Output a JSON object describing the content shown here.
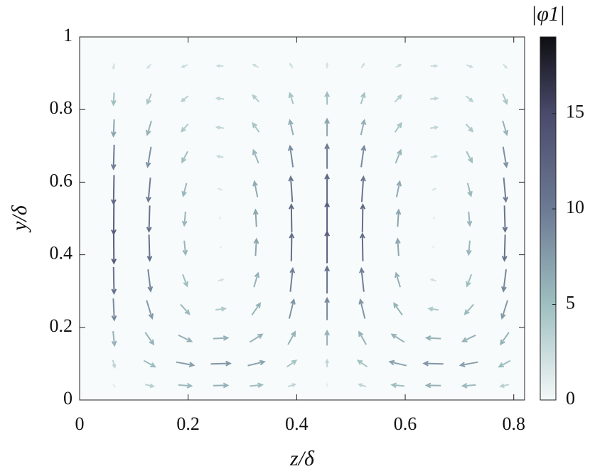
{
  "chart_data": {
    "type": "quiver",
    "xlabel": "z/δ",
    "ylabel": "y/δ",
    "xlim": [
      0,
      0.82
    ],
    "ylim": [
      0,
      1
    ],
    "xticks": [
      0,
      0.2,
      0.4,
      0.6,
      0.8
    ],
    "yticks": [
      0,
      0.2,
      0.4,
      0.6,
      0.8,
      1
    ],
    "x": [
      0.063,
      0.1285,
      0.194,
      0.2595,
      0.325,
      0.3905,
      0.456,
      0.5215,
      0.587,
      0.6525,
      0.718,
      0.7835
    ],
    "y": [
      0.04,
      0.1,
      0.17,
      0.25,
      0.33,
      0.42,
      0.5,
      0.58,
      0.67,
      0.75,
      0.83,
      0.92
    ],
    "u": [
      [
        0.6,
        3.4,
        5.4,
        6,
        5.1,
        2.9,
        0,
        -2.9,
        -5.1,
        -6,
        -5.4,
        -3.4
      ],
      [
        0.8,
        4.6,
        7.2,
        8,
        6.8,
        3.8,
        0,
        -3.8,
        -6.8,
        -8,
        -7.2,
        -4.6
      ],
      [
        0.6,
        3.4,
        5.4,
        6,
        5.1,
        2.9,
        0,
        -2.9,
        -5.1,
        -6,
        -5.4,
        -3.4
      ],
      [
        0.4,
        2.3,
        3.6,
        4,
        3.4,
        1.9,
        0,
        -1.9,
        -3.4,
        -4,
        -3.6,
        -2.3
      ],
      [
        0.2,
        1.1,
        1.8,
        2,
        1.7,
        1,
        0,
        -1,
        -1.7,
        -2,
        -1.8,
        -1.1
      ],
      [
        0.1,
        0.3,
        0.5,
        0.5,
        0.4,
        0.2,
        0,
        -0.2,
        -0.4,
        -0.5,
        -0.5,
        -0.3
      ],
      [
        -0.1,
        -0.3,
        -0.5,
        -0.5,
        -0.4,
        -0.2,
        0,
        0.2,
        0.4,
        0.5,
        0.5,
        0.3
      ],
      [
        -0.2,
        -0.9,
        -1.4,
        -1.5,
        -1.3,
        -0.7,
        0,
        0.7,
        1.3,
        1.5,
        1.4,
        0.9
      ],
      [
        -0.3,
        -1.4,
        -2.3,
        -2.5,
        -2.1,
        -1.2,
        0,
        1.2,
        2.1,
        2.5,
        2.3,
        1.4
      ],
      [
        -0.3,
        -1.7,
        -2.7,
        -3,
        -2.6,
        -1.4,
        0,
        1.4,
        2.6,
        3,
        2.7,
        1.7
      ],
      [
        -0.3,
        -1.7,
        -2.7,
        -3,
        -2.6,
        -1.4,
        0,
        1.4,
        2.6,
        3,
        2.7,
        1.7
      ],
      [
        -0.3,
        -1.4,
        -2.3,
        -2.5,
        -2.1,
        -1.2,
        0,
        1.2,
        2.1,
        2.5,
        2.3,
        1.4
      ]
    ],
    "v": [
      [
        -1,
        -0.8,
        -0.4,
        0.1,
        0.5,
        0.9,
        1,
        0.9,
        0.5,
        0.1,
        -0.4,
        -0.8
      ],
      [
        -3,
        -2.5,
        -1.3,
        0.2,
        1.6,
        2.6,
        3,
        2.6,
        1.6,
        0.2,
        -1.3,
        -2.5
      ],
      [
        -5.9,
        -4.9,
        -2.6,
        0.3,
        3.2,
        5.2,
        6,
        5.2,
        3.2,
        0.3,
        -2.6,
        -4.9
      ],
      [
        -8.9,
        -7.4,
        -4,
        0.5,
        4.8,
        7.8,
        9,
        7.8,
        4.8,
        0.5,
        -4,
        -7.4
      ],
      [
        -10.9,
        -9,
        -4.8,
        0.6,
        5.8,
        9.6,
        11,
        9.6,
        5.8,
        0.6,
        -4.8,
        -9
      ],
      [
        -12.9,
        -10.7,
        -5.7,
        0.7,
        6.9,
        11.3,
        13,
        11.3,
        6.9,
        0.7,
        -5.7,
        -10.7
      ],
      [
        -12.9,
        -10.7,
        -5.7,
        0.7,
        6.9,
        11.3,
        13,
        11.3,
        6.9,
        0.7,
        -5.7,
        -10.7
      ],
      [
        -11.9,
        -9.8,
        -5.3,
        0.6,
        6.4,
        10.4,
        12,
        10.4,
        6.4,
        0.6,
        -5.3,
        -9.8
      ],
      [
        -9.9,
        -8.2,
        -4.4,
        0.5,
        5.3,
        8.7,
        10,
        8.7,
        5.3,
        0.5,
        -4.4,
        -8.2
      ],
      [
        -6.9,
        -5.7,
        -3.1,
        0.4,
        3.7,
        6.1,
        7,
        6.1,
        3.7,
        0.4,
        -3.1,
        -5.7
      ],
      [
        -5,
        -4.1,
        -2.2,
        0.3,
        2.7,
        4.4,
        5,
        4.4,
        2.7,
        0.3,
        -2.2,
        -4.1
      ],
      [
        -2,
        -1.6,
        -0.9,
        0.1,
        1.1,
        1.7,
        2,
        1.7,
        1.1,
        0.1,
        -0.9,
        -1.6
      ]
    ],
    "colorbar": {
      "label": "|φ1|",
      "lim": [
        0,
        19
      ],
      "ticks": [
        0,
        5,
        10,
        15
      ],
      "colormap": [
        {
          "value": 0,
          "color": "#f4f8f8"
        },
        {
          "value": 5,
          "color": "#9ebfc0"
        },
        {
          "value": 10,
          "color": "#6c7a94"
        },
        {
          "value": 15,
          "color": "#4a4a6c"
        },
        {
          "value": 19,
          "color": "#0e0e12"
        }
      ]
    }
  }
}
